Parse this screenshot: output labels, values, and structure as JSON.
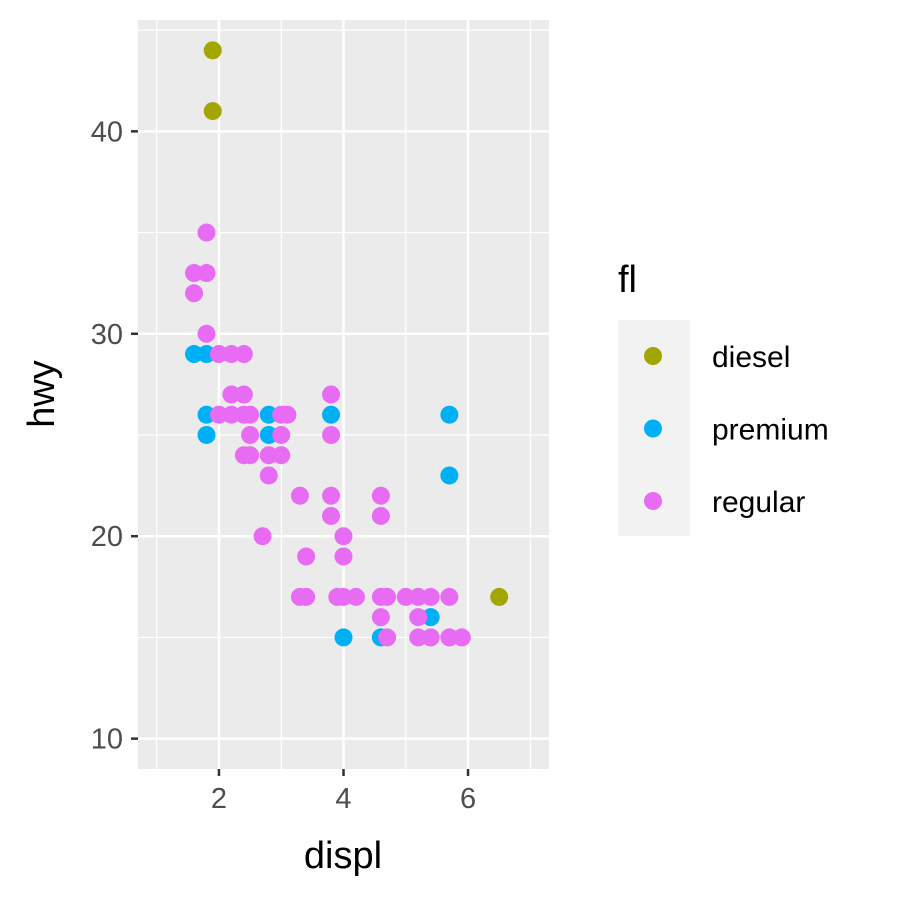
{
  "chart_data": {
    "type": "scatter",
    "xlabel": "displ",
    "ylabel": "hwy",
    "xlim": [
      0.7,
      7.3
    ],
    "ylim": [
      8.5,
      45.5
    ],
    "x_ticks": [
      2,
      4,
      6
    ],
    "y_ticks": [
      10,
      20,
      30,
      40
    ],
    "x_minor": [
      1,
      3,
      5,
      7
    ],
    "y_minor": [
      15,
      25,
      35,
      45
    ],
    "grid": true,
    "legend": {
      "title": "fl",
      "placement": "right"
    },
    "series": [
      {
        "name": "diesel",
        "color": "#A3A500",
        "points": [
          [
            1.9,
            44
          ],
          [
            1.9,
            41
          ],
          [
            6.5,
            17
          ]
        ]
      },
      {
        "name": "premium",
        "color": "#00B0F6",
        "points": [
          [
            1.6,
            29
          ],
          [
            1.8,
            29
          ],
          [
            1.8,
            26
          ],
          [
            1.8,
            25
          ],
          [
            2.8,
            26
          ],
          [
            2.8,
            25
          ],
          [
            3.8,
            26
          ],
          [
            4.0,
            15
          ],
          [
            4.6,
            15
          ],
          [
            5.4,
            16
          ],
          [
            5.7,
            26
          ],
          [
            5.7,
            23
          ]
        ]
      },
      {
        "name": "regular",
        "color": "#E76BF3",
        "points": [
          [
            1.6,
            33
          ],
          [
            1.8,
            33
          ],
          [
            1.8,
            35
          ],
          [
            1.6,
            32
          ],
          [
            1.8,
            30
          ],
          [
            2.0,
            29
          ],
          [
            2.2,
            29
          ],
          [
            2.4,
            29
          ],
          [
            2.0,
            26
          ],
          [
            2.2,
            26
          ],
          [
            2.4,
            26
          ],
          [
            2.5,
            26
          ],
          [
            2.2,
            27
          ],
          [
            2.4,
            27
          ],
          [
            2.5,
            25
          ],
          [
            2.4,
            24
          ],
          [
            2.5,
            24
          ],
          [
            2.7,
            20
          ],
          [
            2.8,
            24
          ],
          [
            2.8,
            23
          ],
          [
            3.0,
            26
          ],
          [
            3.1,
            26
          ],
          [
            3.0,
            25
          ],
          [
            3.0,
            24
          ],
          [
            3.3,
            22
          ],
          [
            3.4,
            19
          ],
          [
            3.3,
            17
          ],
          [
            3.4,
            17
          ],
          [
            3.8,
            27
          ],
          [
            3.8,
            25
          ],
          [
            3.8,
            22
          ],
          [
            3.8,
            21
          ],
          [
            3.9,
            17
          ],
          [
            4.0,
            17
          ],
          [
            4.2,
            17
          ],
          [
            4.0,
            20
          ],
          [
            4.0,
            19
          ],
          [
            4.6,
            22
          ],
          [
            4.6,
            21
          ],
          [
            4.6,
            17
          ],
          [
            4.7,
            17
          ],
          [
            4.6,
            16
          ],
          [
            4.7,
            15
          ],
          [
            5.0,
            17
          ],
          [
            5.2,
            17
          ],
          [
            5.4,
            17
          ],
          [
            5.7,
            17
          ],
          [
            5.2,
            16
          ],
          [
            5.2,
            15
          ],
          [
            5.4,
            15
          ],
          [
            5.7,
            15
          ],
          [
            5.9,
            15
          ]
        ]
      }
    ]
  }
}
